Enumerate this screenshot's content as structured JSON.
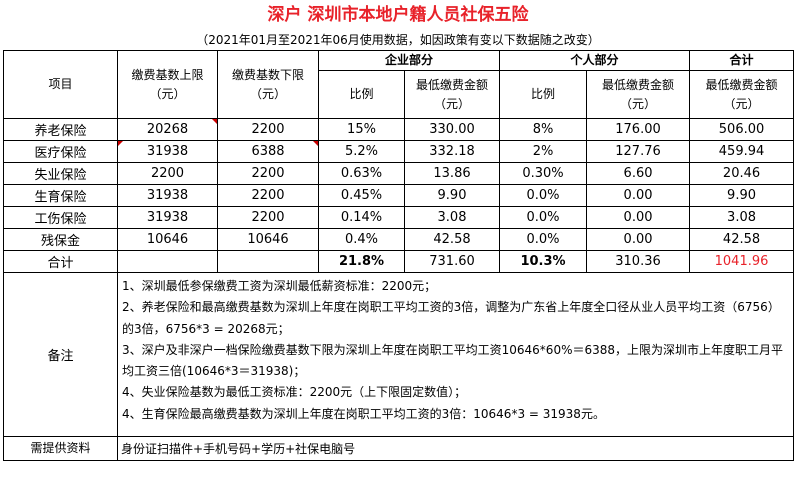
{
  "title": "深户 深圳市本地户籍人员社保五险",
  "subtitle": "（2021年01月至2021年06月使用数据，如因政策有变以下数据随之改变）",
  "headers": {
    "item": "项目",
    "upper_a": "缴费基数上限",
    "upper_b": "（元）",
    "lower_a": "缴费基数下限",
    "lower_b": "（元）",
    "company": "企业部分",
    "personal": "个人部分",
    "total": "合计",
    "ratio": "比例",
    "min_amount_a": "最低缴费金额",
    "min_amount_b": "（元）"
  },
  "rows": [
    {
      "name": "养老保险",
      "upper": "20268",
      "lower": "2200",
      "c_ratio": "15%",
      "c_amount": "330.00",
      "p_ratio": "8%",
      "p_amount": "176.00",
      "total": "506.00"
    },
    {
      "name": "医疗保险",
      "upper": "31938",
      "lower": "6388",
      "c_ratio": "5.2%",
      "c_amount": "332.18",
      "p_ratio": "2%",
      "p_amount": "127.76",
      "total": "459.94"
    },
    {
      "name": "失业保险",
      "upper": "2200",
      "lower": "2200",
      "c_ratio": "0.63%",
      "c_amount": "13.86",
      "p_ratio": "0.30%",
      "p_amount": "6.60",
      "total": "20.46"
    },
    {
      "name": "生育保险",
      "upper": "31938",
      "lower": "2200",
      "c_ratio": "0.45%",
      "c_amount": "9.90",
      "p_ratio": "0.0%",
      "p_amount": "0.00",
      "total": "9.90"
    },
    {
      "name": "工伤保险",
      "upper": "31938",
      "lower": "2200",
      "c_ratio": "0.14%",
      "c_amount": "3.08",
      "p_ratio": "0.0%",
      "p_amount": "0.00",
      "total": "3.08"
    },
    {
      "name": "残保金",
      "upper": "10646",
      "lower": "10646",
      "c_ratio": "0.4%",
      "c_amount": "42.58",
      "p_ratio": "0.0%",
      "p_amount": "0.00",
      "total": "42.58"
    }
  ],
  "sum": {
    "name": "合计",
    "c_ratio": "21.8%",
    "c_amount": "731.60",
    "p_ratio": "10.3%",
    "p_amount": "310.36",
    "total": "1041.96"
  },
  "notes": {
    "label": "备注",
    "lines": [
      "1、深圳最低参保缴费工资为深圳最低薪资标准：2200元；",
      "2、养老保险和最高缴费基数为深圳上年度在岗职工平均工资的3倍，调整为广东省上年度全口径从业人员平均工资（6756）的3倍，6756*3 = 20268元；",
      "3、深户及非深户一档保险缴费基数下限为深圳上年度在岗职工平均工资10646*60%＝6388，上限为深圳市上年度职工月平均工资三倍(10646*3＝31938)；",
      "4、失业保险基数为最低工资标准：2200元（上下限固定数值）；",
      "4、生育保险最高缴费基数为深圳上年度在岗职工平均工资的3倍：10646*3 = 31938元。"
    ]
  },
  "materials": {
    "label": "需提供资料",
    "value": "身份证扫描件+手机号码+学历+社保电脑号"
  },
  "colors": {
    "title": "#e8222a",
    "total_highlight": "#e8222a",
    "comment_mark": "#cc0000"
  }
}
